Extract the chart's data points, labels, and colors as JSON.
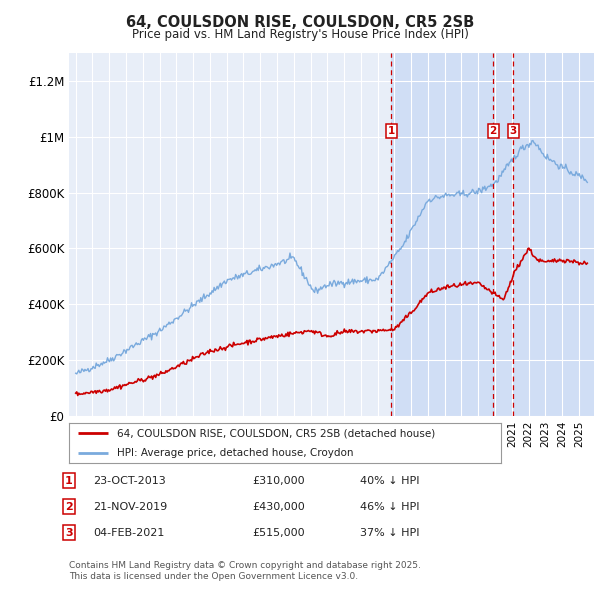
{
  "title": "64, COULSDON RISE, COULSDON, CR5 2SB",
  "subtitle": "Price paid vs. HM Land Registry's House Price Index (HPI)",
  "background_color": "#ffffff",
  "plot_bg_color": "#dce8f5",
  "plot_bg_color_before": "#e8eef8",
  "hpi_color": "#7aaadd",
  "price_color": "#cc0000",
  "vline_color": "#cc0000",
  "ylim": [
    0,
    1300000
  ],
  "yticks": [
    0,
    200000,
    400000,
    600000,
    800000,
    1000000,
    1200000
  ],
  "ytick_labels": [
    "£0",
    "£200K",
    "£400K",
    "£600K",
    "£800K",
    "£1M",
    "£1.2M"
  ],
  "xmin": 1994.6,
  "xmax": 2025.9,
  "transactions": [
    {
      "num": 1,
      "date_label": "23-OCT-2013",
      "x": 2013.81,
      "price": 310000,
      "note": "40% ↓ HPI"
    },
    {
      "num": 2,
      "date_label": "21-NOV-2019",
      "x": 2019.89,
      "price": 430000,
      "note": "46% ↓ HPI"
    },
    {
      "num": 3,
      "date_label": "04-FEB-2021",
      "x": 2021.09,
      "price": 515000,
      "note": "37% ↓ HPI"
    }
  ],
  "legend_line1": "64, COULSDON RISE, COULSDON, CR5 2SB (detached house)",
  "legend_line2": "HPI: Average price, detached house, Croydon",
  "footer1": "Contains HM Land Registry data © Crown copyright and database right 2025.",
  "footer2": "This data is licensed under the Open Government Licence v3.0."
}
